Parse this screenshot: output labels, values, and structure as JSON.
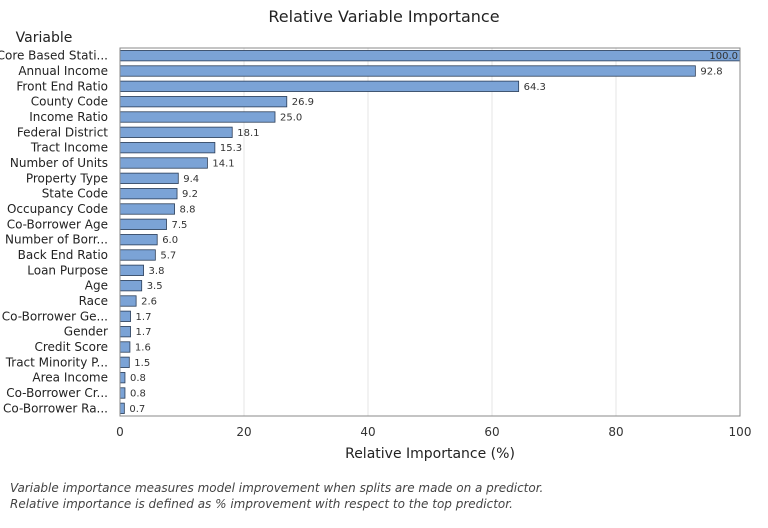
{
  "chart_data": {
    "type": "bar",
    "orientation": "horizontal",
    "title": "Relative Variable Importance",
    "xlabel": "Relative Importance (%)",
    "ylabel": "Variable",
    "xlim": [
      0,
      100
    ],
    "xticks": [
      "0",
      "20",
      "40",
      "60",
      "80",
      "100"
    ],
    "grid": true,
    "bar_color": "#7ba3d6",
    "categories": [
      "Core Based Stati...",
      "Annual Income",
      "Front End Ratio",
      "County Code",
      "Income Ratio",
      "Federal District",
      "Tract Income",
      "Number of Units",
      "Property Type",
      "State Code",
      "Occupancy Code",
      "Co-Borrower Age",
      "Number of Borr...",
      "Back End Ratio",
      "Loan Purpose",
      "Age",
      "Race",
      "Co-Borrower Ge...",
      "Gender",
      "Credit Score",
      "Tract Minority P...",
      "Area Income",
      "Co-Borrower Cr...",
      "Co-Borrower Ra..."
    ],
    "values": [
      100.0,
      92.8,
      64.3,
      26.9,
      25.0,
      18.1,
      15.3,
      14.1,
      9.4,
      9.2,
      8.8,
      7.5,
      6.0,
      5.7,
      3.8,
      3.5,
      2.6,
      1.7,
      1.7,
      1.6,
      1.5,
      0.8,
      0.8,
      0.7
    ],
    "value_labels": [
      "100.0",
      "92.8",
      "64.3",
      "26.9",
      "25.0",
      "18.1",
      "15.3",
      "14.1",
      "9.4",
      "9.2",
      "8.8",
      "7.5",
      "6.0",
      "5.7",
      "3.8",
      "3.5",
      "2.6",
      "1.7",
      "1.7",
      "1.6",
      "1.5",
      "0.8",
      "0.8",
      "0.7"
    ]
  },
  "notes": [
    "Variable importance measures model improvement when splits are made on a predictor.",
    "Relative importance is defined as % improvement with respect to the top predictor."
  ]
}
